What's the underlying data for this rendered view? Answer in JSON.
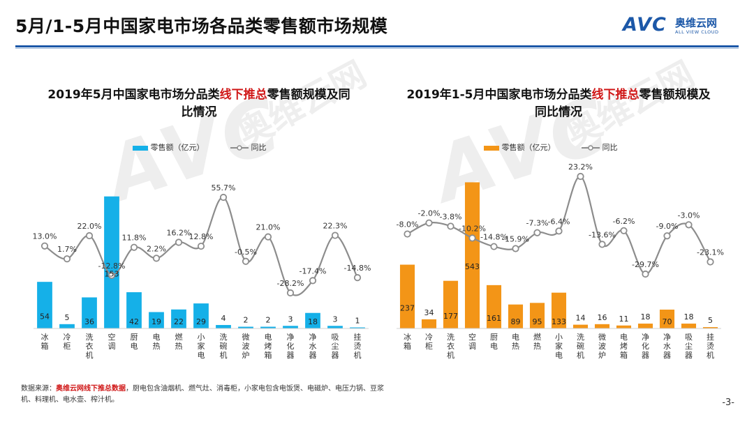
{
  "page": {
    "title": "5月/1-5月中国家电市场各品类零售额市场规模",
    "page_number": "-3-"
  },
  "logo": {
    "mark": "AVC",
    "cn": "奥维云网",
    "en": "ALL VIEW CLOUD"
  },
  "watermark": {
    "mark": "AVC",
    "cn": "奥维云网",
    "en": "ALL VIEW CLOUD"
  },
  "colors": {
    "accent": "#1c58a8",
    "highlight": "#d01818",
    "bar_left": "#15b0e8",
    "bar_right": "#f39517",
    "line": "#8c8c8c"
  },
  "footnote": {
    "prefix": "数据来源：",
    "source": "奥维云网线下推总数据",
    "text": "，厨电包含油烟机、燃气灶、消毒柜，小家电包含电饭煲、电磁炉、电压力锅、豆浆机、料理机、电水壶、榨汁机。"
  },
  "chart_data": [
    {
      "type": "bar",
      "title_prefix": "2019年5月中国家电市场分品类",
      "title_highlight": "线下推总",
      "title_suffix": "零售额规模及同比情况",
      "legend": {
        "bar": "零售额（亿元）",
        "line": "同比"
      },
      "categories": [
        "冰箱",
        "冷柜",
        "洗衣机",
        "空调",
        "厨电",
        "电热",
        "燃热",
        "小家电",
        "洗碗机",
        "微波炉",
        "电烤箱",
        "净化器",
        "净水器",
        "吸尘器",
        "挂烫机"
      ],
      "series": [
        {
          "name": "零售额（亿元）",
          "type": "bar",
          "values": [
            54,
            5,
            36,
            153,
            42,
            19,
            22,
            29,
            4,
            2,
            2,
            3,
            18,
            3,
            1
          ]
        },
        {
          "name": "同比",
          "type": "line",
          "unit": "%",
          "values": [
            13.0,
            1.7,
            22.0,
            -12.8,
            11.8,
            2.2,
            16.2,
            12.8,
            55.7,
            -0.5,
            21.0,
            -28.2,
            -17.4,
            22.3,
            -14.8
          ],
          "labels": [
            "13.0%",
            "1.7%",
            "22.0%",
            "-12.8%",
            "11.8%",
            "2.2%",
            "16.2%",
            "12.8%",
            "55.7%",
            "-0.5%",
            "21.0%",
            "-28.2%",
            "-17.4%",
            "22.3%",
            "-14.8%"
          ]
        }
      ],
      "ylim_bar": [
        0,
        160
      ]
    },
    {
      "type": "bar",
      "title_prefix": "2019年1-5月中国家电市场分品类",
      "title_highlight": "线下推总",
      "title_suffix": "零售额规模及同比情况",
      "legend": {
        "bar": "零售额（亿元）",
        "line": "同比"
      },
      "categories": [
        "冰箱",
        "冷柜",
        "洗衣机",
        "空调",
        "厨电",
        "电热",
        "燃热",
        "小家电",
        "洗碗机",
        "微波炉",
        "电烤箱",
        "净化器",
        "净水器",
        "吸尘器",
        "挂烫机"
      ],
      "series": [
        {
          "name": "零售额（亿元）",
          "type": "bar",
          "values": [
            237,
            34,
            177,
            543,
            161,
            89,
            95,
            133,
            14,
            16,
            11,
            18,
            70,
            18,
            5
          ]
        },
        {
          "name": "同比",
          "type": "line",
          "unit": "%",
          "values": [
            -8.0,
            -2.0,
            -3.8,
            -10.2,
            -14.8,
            -15.9,
            -7.3,
            -6.4,
            23.2,
            -13.6,
            -6.2,
            -29.7,
            -9.0,
            -3.0,
            -23.1
          ],
          "labels": [
            "-8.0%",
            "-2.0%",
            "-3.8%",
            "-10.2%",
            "-14.8%",
            "-15.9%",
            "-7.3%",
            "-6.4%",
            "23.2%",
            "-13.6%",
            "-6.2%",
            "-29.7%",
            "-9.0%",
            "-3.0%",
            "-23.1%"
          ]
        }
      ],
      "ylim_bar": [
        0,
        570
      ]
    }
  ]
}
